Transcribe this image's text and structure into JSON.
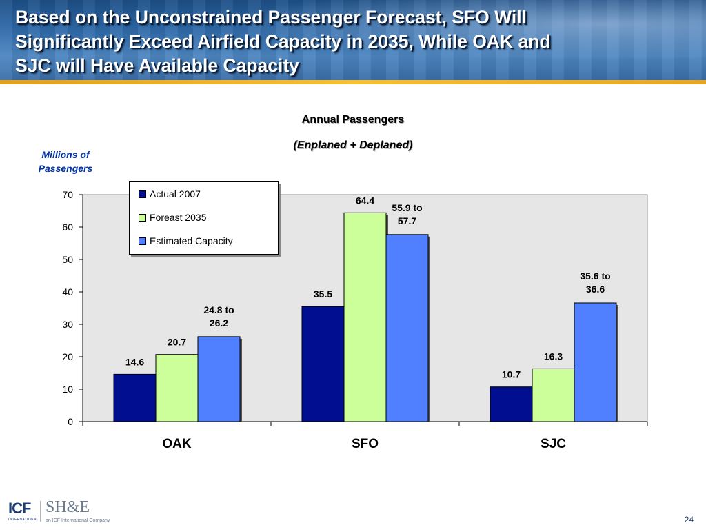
{
  "slide": {
    "title_lines": [
      "Based on the Unconstrained Passenger Forecast, SFO Will",
      "Significantly Exceed Airfield Capacity in 2035, While OAK and",
      "SJC will Have Available Capacity"
    ],
    "page_number": "24"
  },
  "logos": {
    "icf": "ICF",
    "icf_sub": "INTERNATIONAL",
    "she": "SH&E",
    "she_sub": "an ICF International Company"
  },
  "colors": {
    "actual_2007": "#000e8f",
    "forecast_2035": "#ccff99",
    "estimated_capacity": "#5080ff",
    "plot_background": "#e6e6e6"
  },
  "chart_data": {
    "type": "bar",
    "title": "Annual Passengers",
    "subtitle": "(Enplaned + Deplaned)",
    "ylabel": "Millions of Passengers",
    "xlabel": "",
    "ylim": [
      0,
      70
    ],
    "yticks": [
      "0",
      "10",
      "20",
      "30",
      "40",
      "50",
      "60",
      "70"
    ],
    "grid": false,
    "legend_position": "top-left",
    "categories": [
      "OAK",
      "SFO",
      "SJC"
    ],
    "series": [
      {
        "name": "Actual 2007",
        "values": [
          14.6,
          35.5,
          10.7
        ],
        "labels": [
          "14.6",
          "35.5",
          "10.7"
        ]
      },
      {
        "name": "Foreast 2035",
        "values": [
          20.7,
          64.4,
          16.3
        ],
        "labels": [
          "20.7",
          "64.4",
          "16.3"
        ]
      },
      {
        "name": "Estimated Capacity",
        "values": [
          26.2,
          57.7,
          36.6
        ],
        "labels": [
          [
            "24.8 to",
            "26.2"
          ],
          [
            "55.9 to",
            "57.7"
          ],
          [
            "35.6 to",
            "36.6"
          ]
        ]
      }
    ]
  }
}
